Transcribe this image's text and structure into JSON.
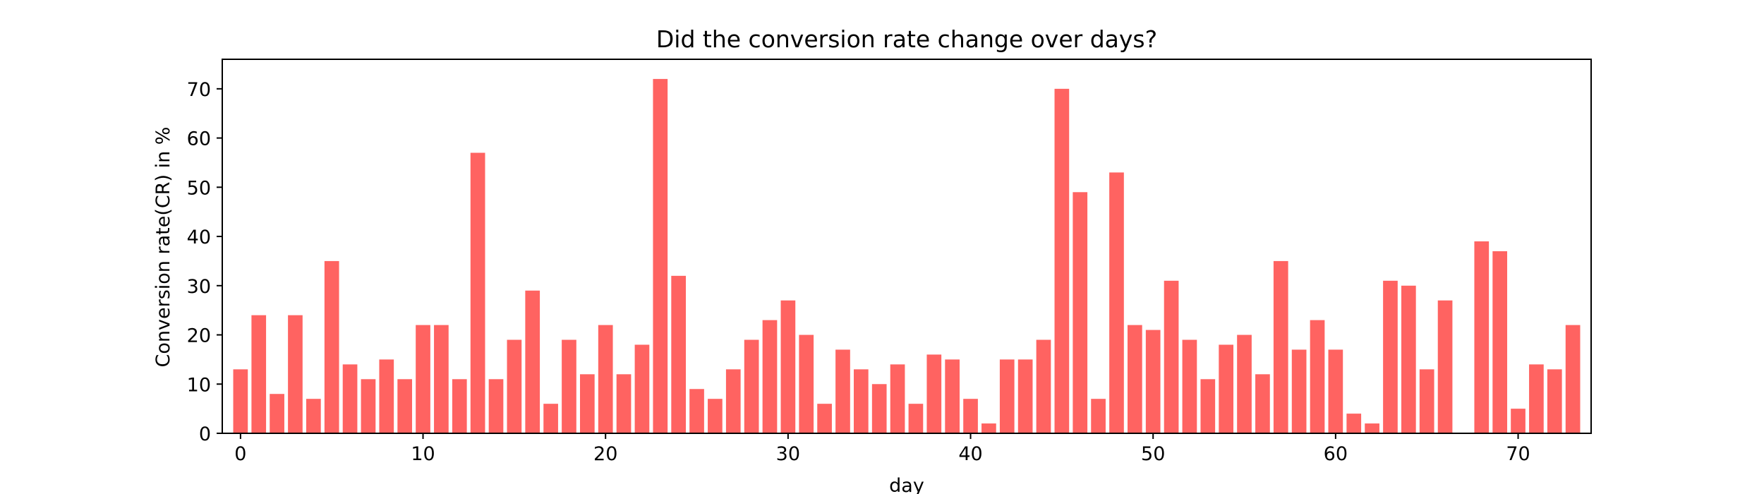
{
  "chart_data": {
    "type": "bar",
    "title": "Did the conversion rate change over days?",
    "xlabel": "day",
    "ylabel": "Conversion rate(CR) in %",
    "x": [
      0,
      1,
      2,
      3,
      4,
      5,
      6,
      7,
      8,
      9,
      10,
      11,
      12,
      13,
      14,
      15,
      16,
      17,
      18,
      19,
      20,
      21,
      22,
      23,
      24,
      25,
      26,
      27,
      28,
      29,
      30,
      31,
      32,
      33,
      34,
      35,
      36,
      37,
      38,
      39,
      40,
      41,
      42,
      43,
      44,
      45,
      46,
      47,
      48,
      49,
      50,
      51,
      52,
      53,
      54,
      55,
      56,
      57,
      58,
      59,
      60,
      61,
      62,
      63,
      64,
      65,
      66,
      67,
      68,
      69,
      70,
      71,
      72,
      73
    ],
    "values": [
      13,
      24,
      8,
      24,
      7,
      35,
      14,
      11,
      15,
      11,
      22,
      22,
      11,
      57,
      11,
      19,
      29,
      6,
      19,
      12,
      22,
      12,
      18,
      72,
      32,
      9,
      7,
      13,
      19,
      23,
      27,
      20,
      6,
      17,
      13,
      10,
      14,
      6,
      16,
      15,
      7,
      2,
      15,
      15,
      19,
      70,
      49,
      7,
      53,
      22,
      21,
      31,
      19,
      11,
      18,
      20,
      12,
      35,
      17,
      23,
      17,
      4,
      2,
      31,
      30,
      13,
      27,
      0,
      39,
      37,
      5,
      14,
      13,
      22
    ],
    "xlim": [
      -1,
      74
    ],
    "ylim": [
      0,
      76
    ],
    "xticks": [
      0,
      10,
      20,
      30,
      40,
      50,
      60,
      70
    ],
    "yticks": [
      0,
      10,
      20,
      30,
      40,
      50,
      60,
      70
    ],
    "bar_color": "#ff6361",
    "grid": false,
    "legend": "none"
  }
}
